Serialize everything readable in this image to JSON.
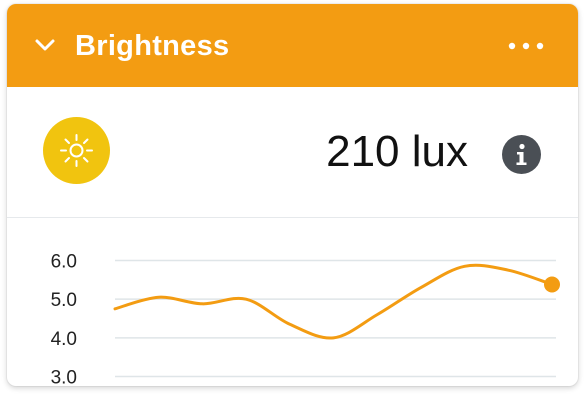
{
  "header": {
    "title": "Brightness",
    "icons": {
      "collapse": "chevron-down-icon",
      "menu": "more-horizontal-icon"
    }
  },
  "reading": {
    "value": "210 lux",
    "icons": {
      "sensor": "sun-icon",
      "info": "info-icon"
    }
  },
  "colors": {
    "header_bg": "#f39c12",
    "sun_badge": "#f1c40f",
    "line": "#f39c12",
    "info_bg": "#4a4f55",
    "grid": "#dfe5e8"
  },
  "chart_data": {
    "type": "line",
    "ylim": [
      3.0,
      6.0
    ],
    "yticks": [
      "6.0",
      "5.0",
      "4.0",
      "3.0"
    ],
    "grid": true,
    "series": [
      {
        "x": [
          0,
          1,
          2,
          3,
          4,
          5,
          6,
          7,
          8,
          9,
          10
        ],
        "y": [
          4.75,
          5.05,
          4.88,
          5.0,
          4.35,
          4.0,
          4.6,
          5.3,
          5.85,
          5.75,
          5.38
        ]
      }
    ]
  }
}
